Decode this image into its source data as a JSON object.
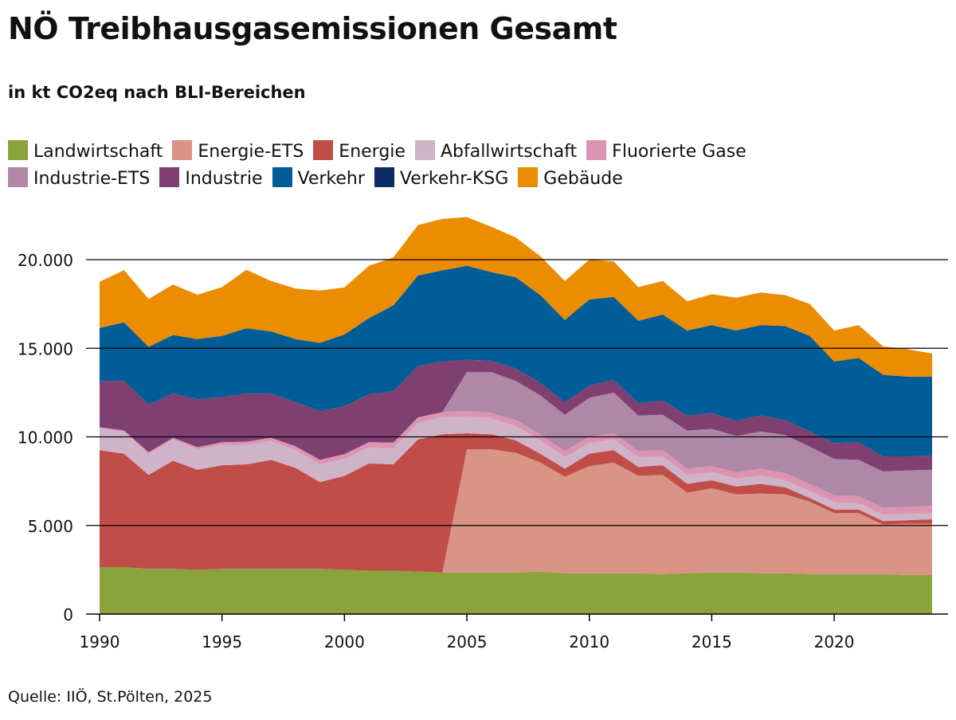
{
  "title": "NÖ Treibhausgasemissionen Gesamt",
  "subtitle": "in kt CO2eq nach BLI-Bereichen",
  "source": "Quelle: IIÖ, St.Pölten, 2025",
  "colors": {
    "Landwirtschaft": "#8aa33d",
    "Energie-ETS": "#d99485",
    "Energie": "#c04d48",
    "Abfallwirtschaft": "#cfb4c9",
    "Fluorierte Gase": "#dc94b2",
    "Industrie-ETS": "#ae88a6",
    "Industrie": "#7f3f71",
    "Verkehr": "#005d97",
    "Verkehr-KSG": "#0c2c63",
    "Gebäude": "#ec8c00"
  },
  "chart_data": {
    "type": "area",
    "stacked": true,
    "x": [
      1990,
      1991,
      1992,
      1993,
      1994,
      1995,
      1996,
      1997,
      1998,
      1999,
      2000,
      2001,
      2002,
      2003,
      2004,
      2005,
      2006,
      2007,
      2008,
      2009,
      2010,
      2011,
      2012,
      2013,
      2014,
      2015,
      2016,
      2017,
      2018,
      2019,
      2020,
      2021,
      2022,
      2023,
      2024
    ],
    "ylim": [
      0,
      22500
    ],
    "yticks": [
      0,
      5000,
      10000,
      15000,
      20000
    ],
    "ytick_labels": [
      "0",
      "5.000",
      "10.000",
      "15.000",
      "20.000"
    ],
    "xticks": [
      1990,
      1995,
      2000,
      2005,
      2010,
      2015,
      2020
    ],
    "xtick_labels": [
      "1990",
      "1995",
      "2000",
      "2005",
      "2010",
      "2015",
      "2020"
    ],
    "grid": "horizontal",
    "legend_position": "top",
    "series": [
      {
        "name": "Landwirtschaft",
        "values": [
          2650,
          2650,
          2550,
          2550,
          2500,
          2550,
          2550,
          2550,
          2550,
          2550,
          2500,
          2450,
          2450,
          2400,
          2350,
          2350,
          2350,
          2350,
          2400,
          2300,
          2300,
          2300,
          2300,
          2250,
          2300,
          2350,
          2350,
          2300,
          2300,
          2250,
          2250,
          2250,
          2250,
          2200,
          2200
        ]
      },
      {
        "name": "Energie-ETS",
        "values": [
          0,
          0,
          0,
          0,
          0,
          0,
          0,
          0,
          0,
          0,
          0,
          0,
          0,
          0,
          0,
          6950,
          6950,
          6750,
          6150,
          5450,
          6050,
          6250,
          5500,
          5600,
          4550,
          4750,
          4400,
          4500,
          4450,
          4100,
          3450,
          3450,
          2800,
          2900,
          2900
        ]
      },
      {
        "name": "Energie",
        "values": [
          6600,
          6400,
          5300,
          6100,
          5650,
          5850,
          5900,
          6150,
          5700,
          4900,
          5300,
          6050,
          6000,
          7450,
          7800,
          900,
          850,
          700,
          500,
          450,
          700,
          700,
          500,
          550,
          500,
          450,
          450,
          550,
          400,
          200,
          200,
          200,
          200,
          200,
          250
        ]
      },
      {
        "name": "Abfallwirtschaft",
        "values": [
          1250,
          1250,
          1200,
          1200,
          1150,
          1150,
          1100,
          1050,
          1000,
          1000,
          950,
          900,
          900,
          950,
          950,
          950,
          900,
          800,
          750,
          650,
          600,
          600,
          550,
          500,
          500,
          450,
          450,
          450,
          400,
          400,
          400,
          350,
          350,
          350,
          350
        ]
      },
      {
        "name": "Fluorierte Gase",
        "values": [
          50,
          60,
          80,
          100,
          120,
          150,
          180,
          200,
          220,
          250,
          280,
          300,
          320,
          300,
          300,
          300,
          300,
          350,
          350,
          350,
          350,
          350,
          350,
          350,
          350,
          350,
          350,
          400,
          400,
          400,
          400,
          400,
          400,
          400,
          400
        ]
      },
      {
        "name": "Industrie-ETS",
        "values": [
          0,
          0,
          0,
          0,
          0,
          0,
          0,
          0,
          0,
          0,
          0,
          0,
          0,
          0,
          0,
          2200,
          2300,
          2200,
          2200,
          2050,
          2200,
          2300,
          2000,
          2000,
          2150,
          2100,
          2050,
          2100,
          2150,
          2100,
          2050,
          2050,
          2050,
          2050,
          2050
        ]
      },
      {
        "name": "Industrie",
        "values": [
          2600,
          2800,
          2700,
          2500,
          2700,
          2550,
          2700,
          2500,
          2500,
          2750,
          2700,
          2700,
          2900,
          2900,
          2850,
          700,
          650,
          700,
          700,
          700,
          700,
          700,
          700,
          800,
          850,
          900,
          850,
          900,
          850,
          850,
          900,
          1000,
          850,
          800,
          800
        ]
      },
      {
        "name": "Verkehr",
        "values": [
          3000,
          3300,
          3250,
          3300,
          3400,
          3450,
          3700,
          3500,
          3550,
          3850,
          4050,
          4300,
          4850,
          5100,
          5150,
          5300,
          5000,
          5150,
          4950,
          4650,
          4850,
          4700,
          4650,
          4850,
          4800,
          4950,
          5100,
          5100,
          5300,
          5400,
          4600,
          4750,
          4600,
          4500,
          4450
        ]
      },
      {
        "name": "Verkehr-KSG",
        "values": [
          0,
          0,
          0,
          0,
          0,
          0,
          0,
          0,
          0,
          0,
          0,
          0,
          0,
          0,
          0,
          0,
          0,
          0,
          0,
          0,
          0,
          0,
          0,
          0,
          0,
          0,
          0,
          0,
          0,
          0,
          0,
          0,
          0,
          0,
          0
        ]
      },
      {
        "name": "Gebäude",
        "values": [
          2600,
          2950,
          2700,
          2850,
          2500,
          2750,
          3300,
          2850,
          2850,
          2950,
          2650,
          2950,
          2700,
          2850,
          2900,
          2750,
          2550,
          2250,
          2200,
          2200,
          2250,
          2000,
          1900,
          1900,
          1650,
          1750,
          1850,
          1850,
          1750,
          1800,
          1750,
          1850,
          1600,
          1550,
          1300
        ]
      }
    ]
  }
}
